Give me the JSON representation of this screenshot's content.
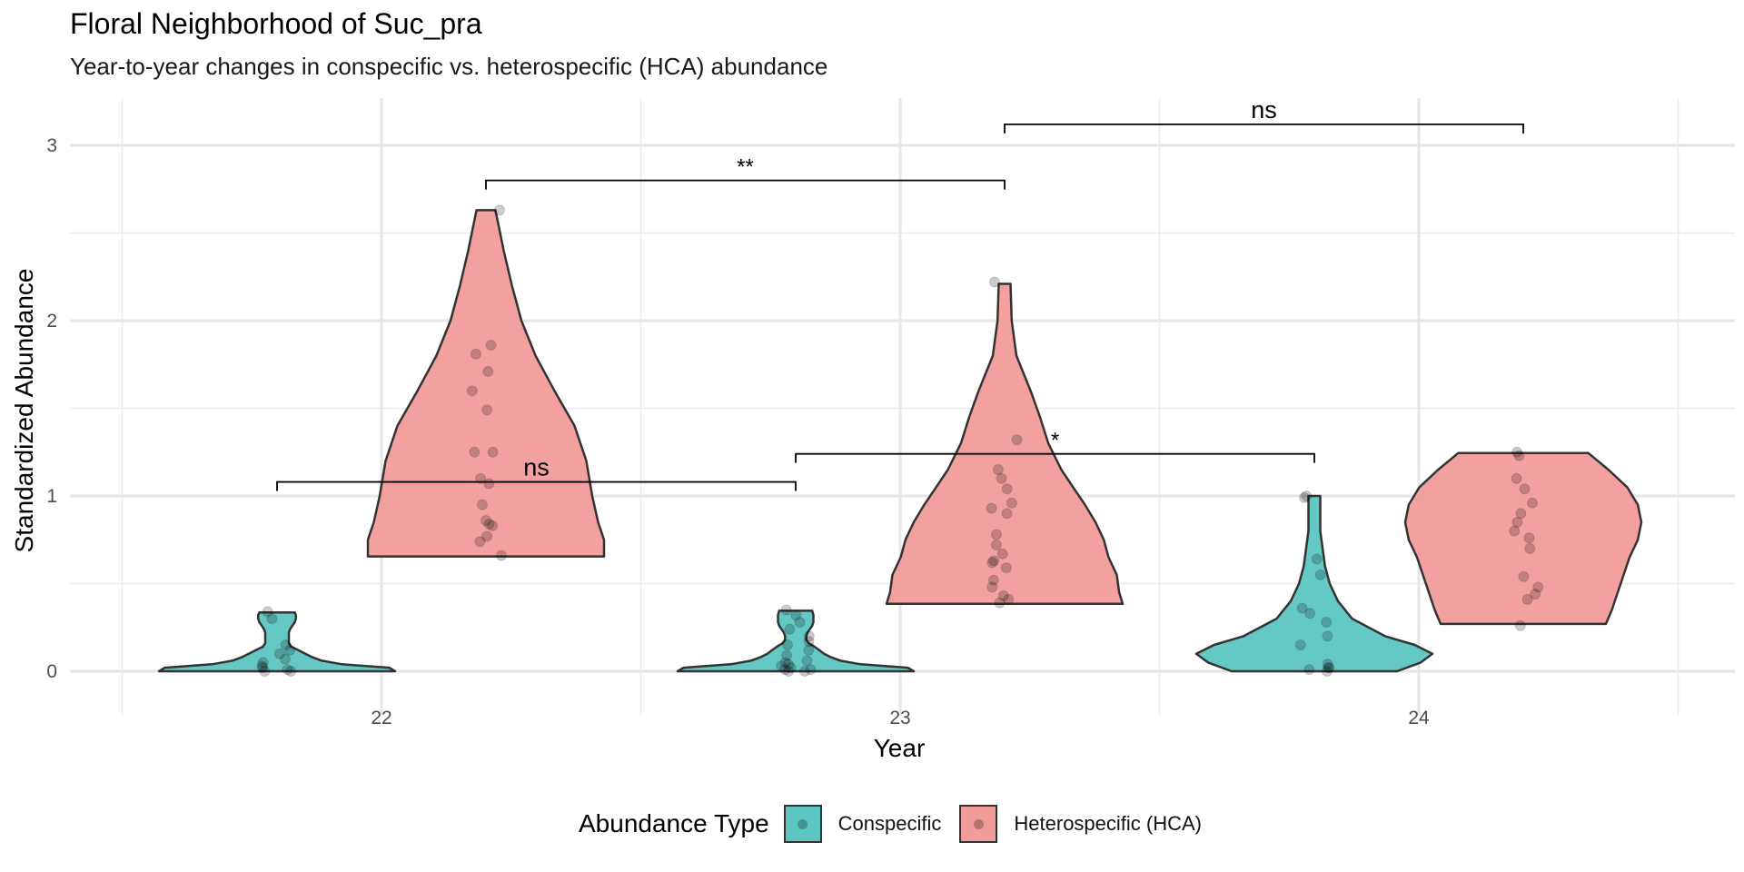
{
  "chart_data": {
    "type": "violin",
    "title": "Floral Neighborhood of Suc_pra",
    "subtitle": "Year-to-year changes in conspecific vs. heterospecific (HCA) abundance",
    "xlabel": "Year",
    "ylabel": "Standardized Abundance",
    "categories": [
      "22",
      "23",
      "24"
    ],
    "ylim": [
      -0.15,
      3.25
    ],
    "yticks": [
      0,
      1,
      2,
      3
    ],
    "grid": true,
    "legend_position": "bottom",
    "legend_title": "Abundance Type",
    "series": [
      {
        "name": "Conspecific",
        "color": "#5cc6c2",
        "groups": [
          {
            "category": "22",
            "profile": [
              [
                0,
                1.0
              ],
              [
                0.02,
                0.95
              ],
              [
                0.04,
                0.55
              ],
              [
                0.06,
                0.38
              ],
              [
                0.08,
                0.3
              ],
              [
                0.1,
                0.24
              ],
              [
                0.12,
                0.18
              ],
              [
                0.14,
                0.12
              ],
              [
                0.16,
                0.1
              ],
              [
                0.18,
                0.1
              ],
              [
                0.2,
                0.1
              ],
              [
                0.22,
                0.1
              ],
              [
                0.24,
                0.11
              ],
              [
                0.26,
                0.13
              ],
              [
                0.28,
                0.15
              ],
              [
                0.3,
                0.16
              ],
              [
                0.32,
                0.16
              ],
              [
                0.335,
                0.15
              ]
            ],
            "points": [
              0.0,
              0.01,
              0.0,
              0.02,
              0.03,
              0.05,
              0.07,
              0.1,
              0.12,
              0.15,
              0.3,
              0.34
            ]
          },
          {
            "category": "23",
            "profile": [
              [
                0,
                1.0
              ],
              [
                0.02,
                0.95
              ],
              [
                0.04,
                0.55
              ],
              [
                0.06,
                0.38
              ],
              [
                0.08,
                0.3
              ],
              [
                0.1,
                0.24
              ],
              [
                0.12,
                0.2
              ],
              [
                0.14,
                0.16
              ],
              [
                0.16,
                0.11
              ],
              [
                0.18,
                0.09
              ],
              [
                0.2,
                0.09
              ],
              [
                0.22,
                0.1
              ],
              [
                0.24,
                0.12
              ],
              [
                0.26,
                0.14
              ],
              [
                0.28,
                0.15
              ],
              [
                0.3,
                0.15
              ],
              [
                0.32,
                0.15
              ],
              [
                0.345,
                0.14
              ]
            ],
            "points": [
              0.0,
              0.0,
              0.01,
              0.01,
              0.02,
              0.03,
              0.04,
              0.05,
              0.06,
              0.09,
              0.12,
              0.15,
              0.17,
              0.2,
              0.24,
              0.28,
              0.32,
              0.35
            ]
          },
          {
            "category": "24",
            "profile": [
              [
                0,
                0.7
              ],
              [
                0.05,
                0.9
              ],
              [
                0.1,
                1.0
              ],
              [
                0.15,
                0.85
              ],
              [
                0.2,
                0.6
              ],
              [
                0.3,
                0.32
              ],
              [
                0.4,
                0.2
              ],
              [
                0.5,
                0.13
              ],
              [
                0.6,
                0.09
              ],
              [
                0.7,
                0.07
              ],
              [
                0.8,
                0.05
              ],
              [
                0.9,
                0.05
              ],
              [
                1.0,
                0.05
              ]
            ],
            "points": [
              0.0,
              0.01,
              0.02,
              0.02,
              0.04,
              0.15,
              0.2,
              0.28,
              0.33,
              0.36,
              0.55,
              0.64,
              1.0,
              0.99
            ]
          }
        ]
      },
      {
        "name": "Heterospecific (HCA)",
        "color": "#f19c99",
        "groups": [
          {
            "category": "22",
            "profile": [
              [
                0.655,
                1.0
              ],
              [
                0.7,
                1.0
              ],
              [
                0.75,
                1.0
              ],
              [
                0.85,
                0.95
              ],
              [
                1.0,
                0.9
              ],
              [
                1.2,
                0.85
              ],
              [
                1.4,
                0.75
              ],
              [
                1.6,
                0.58
              ],
              [
                1.8,
                0.42
              ],
              [
                2.0,
                0.3
              ],
              [
                2.2,
                0.22
              ],
              [
                2.4,
                0.15
              ],
              [
                2.5,
                0.12
              ],
              [
                2.63,
                0.08
              ]
            ],
            "points": [
              0.66,
              0.74,
              0.77,
              0.83,
              0.84,
              0.86,
              0.95,
              1.07,
              1.1,
              1.25,
              1.25,
              1.49,
              1.6,
              1.71,
              1.81,
              1.86,
              2.63
            ]
          },
          {
            "category": "23",
            "profile": [
              [
                0.385,
                1.0
              ],
              [
                0.45,
                0.97
              ],
              [
                0.55,
                0.95
              ],
              [
                0.65,
                0.88
              ],
              [
                0.75,
                0.84
              ],
              [
                0.85,
                0.77
              ],
              [
                0.95,
                0.68
              ],
              [
                1.05,
                0.58
              ],
              [
                1.15,
                0.48
              ],
              [
                1.3,
                0.37
              ],
              [
                1.45,
                0.3
              ],
              [
                1.6,
                0.22
              ],
              [
                1.8,
                0.1
              ],
              [
                2.0,
                0.06
              ],
              [
                2.21,
                0.05
              ]
            ],
            "points": [
              0.39,
              0.41,
              0.43,
              0.48,
              0.52,
              0.59,
              0.62,
              0.63,
              0.67,
              0.72,
              0.78,
              0.9,
              0.93,
              0.96,
              1.04,
              1.1,
              1.15,
              1.32,
              2.22
            ]
          },
          {
            "category": "24",
            "profile": [
              [
                0.27,
                0.7
              ],
              [
                0.35,
                0.75
              ],
              [
                0.45,
                0.8
              ],
              [
                0.55,
                0.85
              ],
              [
                0.65,
                0.9
              ],
              [
                0.75,
                0.97
              ],
              [
                0.85,
                1.0
              ],
              [
                0.95,
                0.97
              ],
              [
                1.05,
                0.88
              ],
              [
                1.15,
                0.72
              ],
              [
                1.245,
                0.55
              ]
            ],
            "points": [
              0.26,
              0.41,
              0.44,
              0.48,
              0.54,
              0.7,
              0.76,
              0.8,
              0.85,
              0.9,
              0.96,
              1.04,
              1.1,
              1.23,
              1.25
            ]
          }
        ]
      }
    ],
    "significance": [
      {
        "label": "ns",
        "from": "Conspecific 22",
        "to": "Conspecific 23",
        "y": 1.08
      },
      {
        "label": "**",
        "from": "Heterospecific (HCA) 22",
        "to": "Heterospecific (HCA) 23",
        "y": 2.8
      },
      {
        "label": "*",
        "from": "Conspecific 23",
        "to": "Conspecific 24",
        "y": 1.24
      },
      {
        "label": "ns",
        "from": "Heterospecific (HCA) 23",
        "to": "Heterospecific (HCA) 24",
        "y": 3.12
      }
    ]
  }
}
